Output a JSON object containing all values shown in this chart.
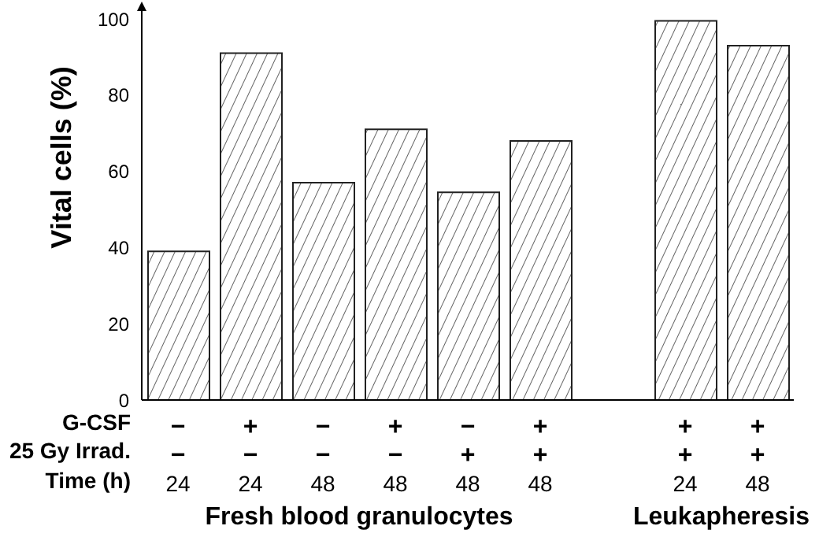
{
  "chart_data": {
    "type": "bar",
    "ylabel": "Vital cells (%)",
    "categories": [
      "−\n−\n24",
      "+\n−\n24",
      "−\n−\n48",
      "+\n−\n48",
      "−\n+\n48",
      "+\n+\n48",
      null,
      "+\n+\n24",
      "+\n+\n48"
    ],
    "values": [
      39,
      91,
      57,
      71,
      54.5,
      68,
      null,
      99.5,
      93
    ],
    "color": "#222222",
    "ylim": [
      0,
      100
    ],
    "yticks": [
      0,
      20,
      40,
      60,
      80,
      100
    ],
    "grid": false,
    "legend": false,
    "annotations": [
      "G-CSF",
      "25 Gy Irrad.",
      "Time (h)",
      "Fresh blood granulocytes",
      "Leukapheresis"
    ]
  }
}
